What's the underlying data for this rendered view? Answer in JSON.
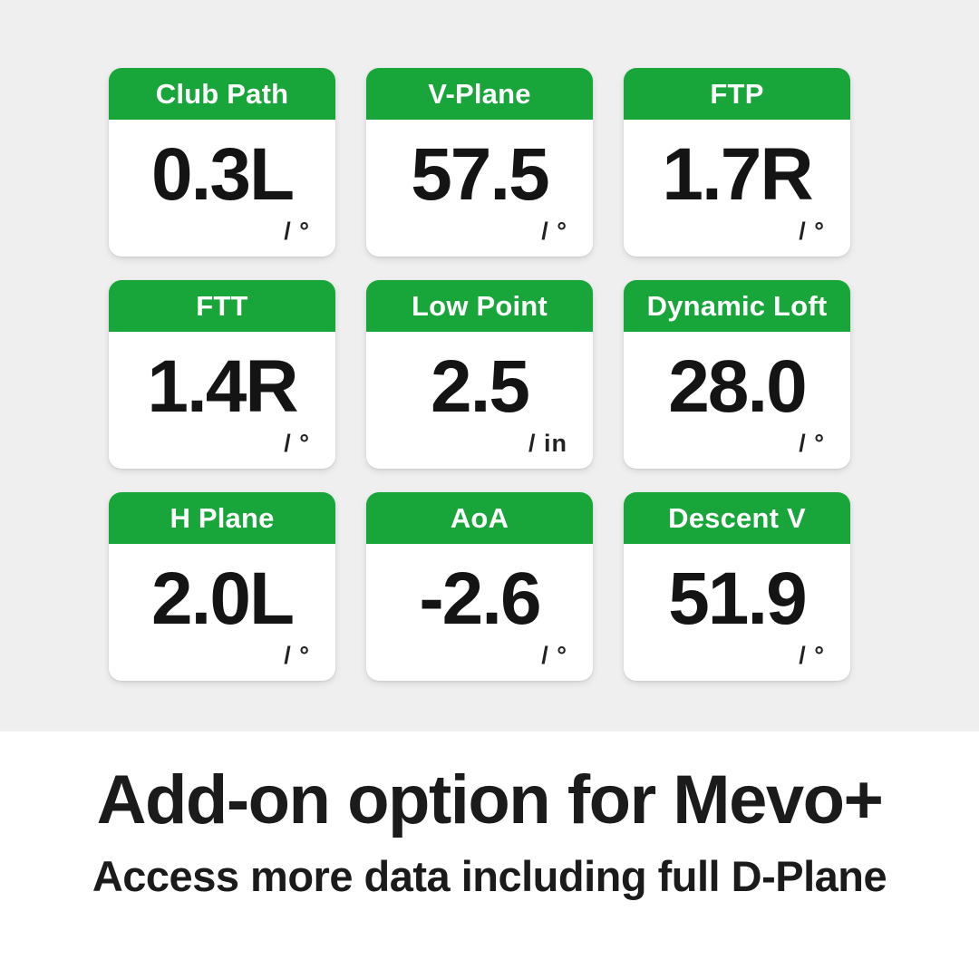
{
  "theme": {
    "green": "#18a53a",
    "background_top": "#efefef",
    "background_bottom": "#ffffff",
    "value_color": "#141414"
  },
  "cards": [
    {
      "label": "Club Path",
      "value": "0.3L",
      "unit": "/ °"
    },
    {
      "label": "V-Plane",
      "value": "57.5",
      "unit": "/ °"
    },
    {
      "label": "FTP",
      "value": "1.7R",
      "unit": "/ °"
    },
    {
      "label": "FTT",
      "value": "1.4R",
      "unit": "/ °"
    },
    {
      "label": "Low Point",
      "value": "2.5",
      "unit": "/ in"
    },
    {
      "label": "Dynamic Loft",
      "value": "28.0",
      "unit": "/ °"
    },
    {
      "label": "H Plane",
      "value": "2.0L",
      "unit": "/ °"
    },
    {
      "label": "AoA",
      "value": "-2.6",
      "unit": "/ °"
    },
    {
      "label": "Descent V",
      "value": "51.9",
      "unit": "/ °"
    }
  ],
  "footer": {
    "title": "Add-on option for Mevo+",
    "subtitle": "Access more data including full D-Plane"
  }
}
